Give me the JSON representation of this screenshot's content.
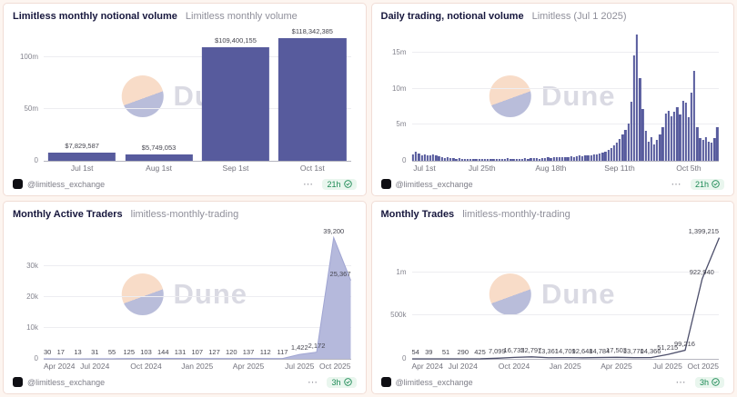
{
  "brand": {
    "watermark": "Dune"
  },
  "footer_common": {
    "author": "@limitless_exchange",
    "menu": "⋯"
  },
  "cards": [
    {
      "title": "Limitless monthly notional volume",
      "subtitle": "Limitless monthly volume",
      "footer": {
        "author": "@limitless_exchange",
        "menu": "⋯",
        "age": "21h"
      },
      "chart_data": {
        "type": "bar",
        "title": "Limitless monthly notional volume",
        "unit": "USD",
        "categories": [
          "Jul 1st",
          "Aug 1st",
          "Sep 1st",
          "Oct 1st"
        ],
        "values": [
          7829587,
          5749053,
          109400155,
          118342385
        ],
        "labels": [
          "$7,829,587",
          "$5,749,053",
          "$109,400,155",
          "$118,342,385"
        ],
        "color": "#575b9d",
        "bar_frac": 0.88,
        "ymax": 125000000,
        "yticks": [
          {
            "v": 0,
            "label": "0"
          },
          {
            "v": 50000000,
            "label": "50m"
          },
          {
            "v": 100000000,
            "label": "100m"
          }
        ],
        "xticks": [
          {
            "pos": 0.125,
            "label": "Jul 1st"
          },
          {
            "pos": 0.375,
            "label": "Aug 1st"
          },
          {
            "pos": 0.625,
            "label": "Sep 1st"
          },
          {
            "pos": 0.875,
            "label": "Oct 1st"
          }
        ]
      }
    },
    {
      "title": "Daily trading, notional volume",
      "subtitle": "Limitless (Jul 1 2025)",
      "footer": {
        "author": "@limitless_exchange",
        "menu": "⋯",
        "age": "21h"
      },
      "chart_data": {
        "type": "bar",
        "title": "Daily trading, notional volume",
        "unit": "USD millions (estimated daily values)",
        "values": [
          0.9,
          1.2,
          1.0,
          0.8,
          0.9,
          0.7,
          0.8,
          0.9,
          0.7,
          0.6,
          0.5,
          0.4,
          0.45,
          0.4,
          0.35,
          0.3,
          0.35,
          0.3,
          0.25,
          0.3,
          0.25,
          0.3,
          0.2,
          0.25,
          0.3,
          0.25,
          0.2,
          0.25,
          0.3,
          0.25,
          0.2,
          0.25,
          0.3,
          0.35,
          0.3,
          0.25,
          0.3,
          0.25,
          0.3,
          0.35,
          0.3,
          0.35,
          0.4,
          0.35,
          0.3,
          0.35,
          0.4,
          0.45,
          0.4,
          0.45,
          0.5,
          0.45,
          0.5,
          0.55,
          0.5,
          0.6,
          0.55,
          0.6,
          0.7,
          0.65,
          0.7,
          0.8,
          0.75,
          0.85,
          0.9,
          1.0,
          1.1,
          1.3,
          1.5,
          1.8,
          2.1,
          2.5,
          3.0,
          3.6,
          4.3,
          5.2,
          8.2,
          14.6,
          17.5,
          11.4,
          7.2,
          4.1,
          2.6,
          3.3,
          2.3,
          2.9,
          3.6,
          4.6,
          6.6,
          6.9,
          6.2,
          6.8,
          7.4,
          6.4,
          8.3,
          8.0,
          6.1,
          9.4,
          12.5,
          4.6,
          3.1,
          2.9,
          3.3,
          2.7,
          2.5,
          3.1,
          4.7
        ],
        "color": "#575b9d",
        "bar_frac": 0.72,
        "ymax": 18,
        "yticks": [
          {
            "v": 0,
            "label": "0"
          },
          {
            "v": 5,
            "label": "5m"
          },
          {
            "v": 10,
            "label": "10m"
          },
          {
            "v": 15,
            "label": "15m"
          }
        ],
        "xticks": [
          {
            "pos": 0.005,
            "label": "Jul 1st"
          },
          {
            "pos": 0.229,
            "label": "Jul 25th"
          },
          {
            "pos": 0.453,
            "label": "Aug 18th"
          },
          {
            "pos": 0.677,
            "label": "Sep 11th"
          },
          {
            "pos": 0.902,
            "label": "Oct 5th"
          }
        ]
      }
    },
    {
      "title": "Monthly Active Traders",
      "subtitle": "limitless-monthly-trading",
      "footer": {
        "author": "@limitless_exchange",
        "menu": "⋯",
        "age": "3h"
      },
      "chart_data": {
        "type": "area",
        "title": "Monthly Active Traders",
        "categories": [
          "Apr 2024",
          "May 2024",
          "Jun 2024",
          "Jul 2024",
          "Aug 2024",
          "Sep 2024",
          "Oct 2024",
          "Nov 2024",
          "Dec 2024",
          "Jan 2025",
          "Feb 2025",
          "Mar 2025",
          "Apr 2025",
          "May 2025",
          "Jun 2025",
          "Jul 2025",
          "Aug 2025",
          "Sep 2025",
          "Oct 2025"
        ],
        "values": [
          30,
          17,
          13,
          31,
          55,
          125,
          103,
          144,
          131,
          107,
          127,
          120,
          137,
          112,
          117,
          1422,
          2172,
          39200,
          25367
        ],
        "labels": [
          "30",
          "17",
          "13",
          "31",
          "55",
          "125",
          "103",
          "144",
          "131",
          "107",
          "127",
          "120",
          "137",
          "112",
          "117",
          "1,422",
          "2,172",
          "39,200",
          "25,367"
        ],
        "color": "#a0a5d2",
        "fill": "#b5b9dc",
        "stroke_w": 1,
        "ymax": 42000,
        "yticks": [
          {
            "v": 0,
            "label": "0"
          },
          {
            "v": 10000,
            "label": "10k"
          },
          {
            "v": 20000,
            "label": "20k"
          },
          {
            "v": 30000,
            "label": "30k"
          }
        ],
        "xticks": [
          {
            "pos": 0,
            "label": "Apr 2024"
          },
          {
            "pos": 0.1667,
            "label": "Jul 2024"
          },
          {
            "pos": 0.3333,
            "label": "Oct 2024"
          },
          {
            "pos": 0.5,
            "label": "Jan 2025"
          },
          {
            "pos": 0.6667,
            "label": "Apr 2025"
          },
          {
            "pos": 0.8333,
            "label": "Jul 2025"
          },
          {
            "pos": 1,
            "label": "Oct 2025"
          }
        ]
      }
    },
    {
      "title": "Monthly Trades",
      "subtitle": "limitless-monthly-trading",
      "footer": {
        "author": "@limitless_exchange",
        "menu": "⋯",
        "age": "3h"
      },
      "chart_data": {
        "type": "line",
        "title": "Monthly Trades",
        "categories": [
          "Apr 2024",
          "May 2024",
          "Jun 2024",
          "Jul 2024",
          "Aug 2024",
          "Sep 2024",
          "Oct 2024",
          "Nov 2024",
          "Dec 2024",
          "Jan 2025",
          "Feb 2025",
          "Mar 2025",
          "Apr 2025",
          "May 2025",
          "Jun 2025",
          "Jul 2025",
          "Aug 2025",
          "Sep 2025",
          "Oct 2025"
        ],
        "values": [
          54,
          39,
          51,
          290,
          425,
          7099,
          16735,
          22797,
          13361,
          14709,
          12648,
          14784,
          17503,
          13770,
          14366,
          51215,
          99216,
          922940,
          1399215
        ],
        "labels": [
          "54",
          "39",
          "51",
          "290",
          "425",
          "7,099",
          "16,735",
          "22,797",
          "13,361",
          "14,709",
          "12,648",
          "14,784",
          "17,503",
          "13,770",
          "14,366",
          "51,215",
          "99,216",
          "922,940",
          "1,399,215"
        ],
        "color": "#4d4f6b",
        "fill": null,
        "stroke_w": 1.3,
        "ymax": 1500000,
        "yticks": [
          {
            "v": 0,
            "label": "0"
          },
          {
            "v": 500000,
            "label": "500k"
          },
          {
            "v": 1000000,
            "label": "1m"
          }
        ],
        "xticks": [
          {
            "pos": 0,
            "label": "Apr 2024"
          },
          {
            "pos": 0.1667,
            "label": "Jul 2024"
          },
          {
            "pos": 0.3333,
            "label": "Oct 2024"
          },
          {
            "pos": 0.5,
            "label": "Jan 2025"
          },
          {
            "pos": 0.6667,
            "label": "Apr 2025"
          },
          {
            "pos": 0.8333,
            "label": "Jul 2025"
          },
          {
            "pos": 1,
            "label": "Oct 2025"
          }
        ]
      }
    }
  ]
}
